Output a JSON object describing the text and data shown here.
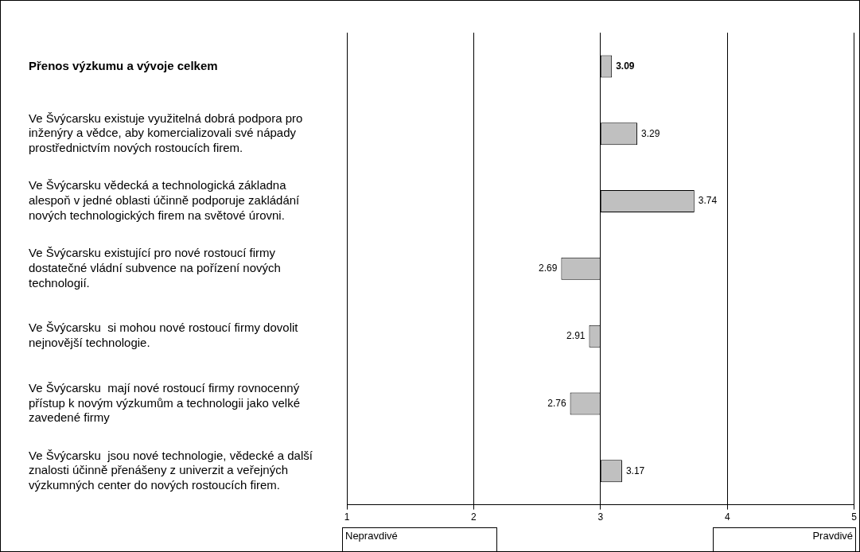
{
  "chart_data": {
    "type": "bar",
    "orientation": "horizontal",
    "categories": [
      "Přenos výzkumu a vývoje celkem",
      "Ve Švýcarsku existuje využitelná dobrá podpora pro\ninženýry a vědce, aby komercializovali své nápady\nprostřednictvím nových rostoucích firem.",
      "Ve Švýcarsku vědecká a technologická základna\nalespoň v jedné oblasti účinně podporuje zakládání\nnových technologických firem na světové úrovni.",
      "Ve Švýcarsku existující pro nové rostoucí firmy\ndostatečné vládní subvence na pořízení nových\ntechnologií.",
      "Ve Švýcarsku  si mohou nové rostoucí firmy dovolit\nnejnovější technologie.",
      "Ve Švýcarsku  mají nové rostoucí firmy rovnocenný\npřístup k novým výzkumům a technologii jako velké\nzavedené firmy",
      "Ve Švýcarsku  jsou nové technologie, vědecké a další\nznalosti účinně přenášeny z univerzit a veřejných\nvýzkumných center do nových rostoucích firem."
    ],
    "base": [
      3,
      3,
      3,
      3,
      3,
      3,
      3
    ],
    "values": [
      0.09,
      0.29,
      0.74,
      -0.31,
      -0.09,
      -0.24,
      0.17
    ],
    "value_labels": [
      "3.09",
      "3.29",
      "3.74",
      "2.69",
      "2.91",
      "2.76",
      "3.17"
    ],
    "color": "#c0c0c0",
    "xlim": [
      1,
      5
    ],
    "xticks": [
      1,
      2,
      3,
      4,
      5
    ],
    "grid": "x",
    "legend": false,
    "annotations": [
      "Nepravdivé",
      "Pravdivé"
    ]
  }
}
